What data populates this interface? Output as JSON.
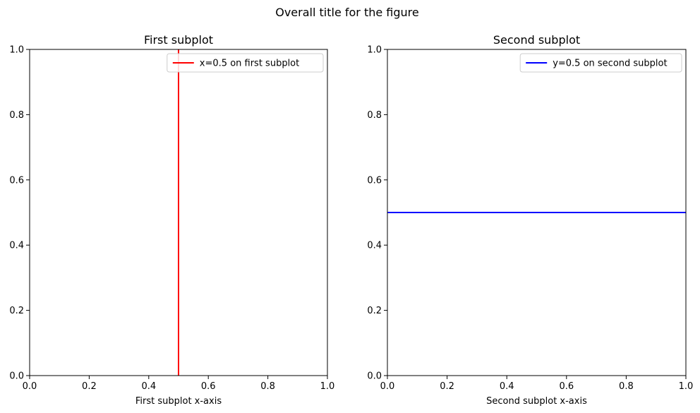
{
  "figure": {
    "title": "Overall title for the figure"
  },
  "chart_data": [
    {
      "type": "line",
      "title": "First subplot",
      "xlabel": "First subplot x-axis",
      "ylabel": "",
      "xlim": [
        0,
        1
      ],
      "ylim": [
        0,
        1
      ],
      "xticks": [
        "0.0",
        "0.2",
        "0.4",
        "0.6",
        "0.8",
        "1.0"
      ],
      "yticks": [
        "0.0",
        "0.2",
        "0.4",
        "0.6",
        "0.8",
        "1.0"
      ],
      "grid": false,
      "legend_position": "upper right",
      "series": [
        {
          "name": "x=0.5 on first subplot",
          "orientation": "vertical",
          "x": [
            0.5,
            0.5
          ],
          "y": [
            0,
            1
          ],
          "color": "#ff0000"
        }
      ]
    },
    {
      "type": "line",
      "title": "Second subplot",
      "xlabel": "Second subplot x-axis",
      "ylabel": "",
      "xlim": [
        0,
        1
      ],
      "ylim": [
        0,
        1
      ],
      "xticks": [
        "0.0",
        "0.2",
        "0.4",
        "0.6",
        "0.8",
        "1.0"
      ],
      "yticks": [
        "0.0",
        "0.2",
        "0.4",
        "0.6",
        "0.8",
        "1.0"
      ],
      "grid": false,
      "legend_position": "upper right",
      "series": [
        {
          "name": "y=0.5 on second subplot",
          "orientation": "horizontal",
          "x": [
            0,
            1
          ],
          "y": [
            0.5,
            0.5
          ],
          "color": "#0000ff"
        }
      ]
    }
  ]
}
